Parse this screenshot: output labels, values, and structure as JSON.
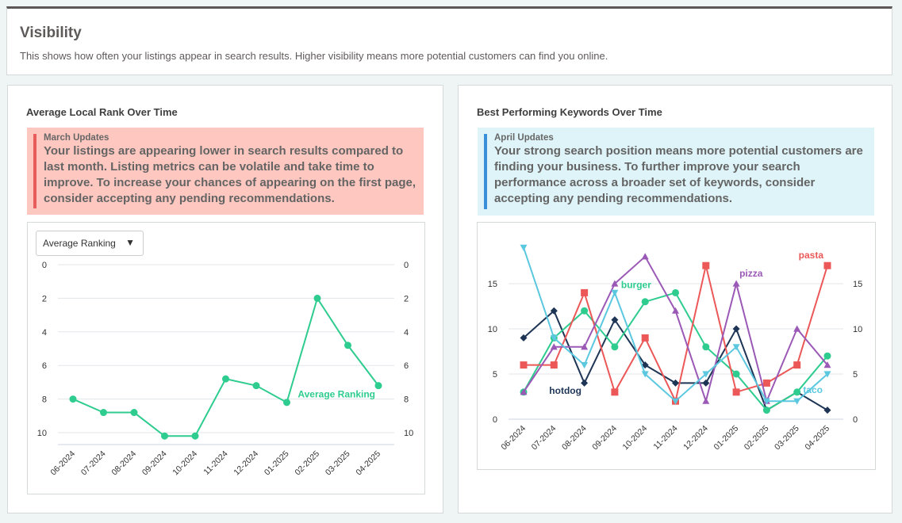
{
  "header": {
    "title": "Visibility",
    "description": "This shows how often your listings appear in search results. Higher visibility means more potential customers can find you online."
  },
  "left": {
    "title": "Average Local Rank Over Time",
    "alert": {
      "title": "March Updates",
      "body": "Your listings are appearing lower in search results compared to last month. Listing metrics can be volatile and take time to improve. To increase your chances of appearing on the first page, consider accepting any pending recommendations."
    },
    "dropdown": {
      "value": "Average Ranking",
      "icon": "caret-down-icon"
    }
  },
  "right": {
    "title": "Best Performing Keywords Over Time",
    "alert": {
      "title": "April Updates",
      "body": "Your strong search position means more potential customers are finding your business. To further improve your search performance across a broader set of keywords, consider accepting any pending recommendations."
    }
  },
  "chart_data": [
    {
      "type": "line",
      "categories": [
        "06-2024",
        "07-2024",
        "08-2024",
        "09-2024",
        "10-2024",
        "11-2024",
        "12-2024",
        "01-2025",
        "02-2025",
        "03-2025",
        "04-2025"
      ],
      "y_reversed": true,
      "ylim": [
        0,
        10.7
      ],
      "yticks": [
        0,
        2,
        4,
        6,
        8,
        10
      ],
      "dual_y_axis": true,
      "grid": true,
      "series": [
        {
          "name": "Average Ranking",
          "color": "#2ecc8f",
          "marker": "circle",
          "values": [
            8,
            8.8,
            8.8,
            10.2,
            10.2,
            6.8,
            7.2,
            8.2,
            2,
            4.8,
            7.2
          ]
        }
      ]
    },
    {
      "type": "line",
      "categories": [
        "06-2024",
        "07-2024",
        "08-2024",
        "09-2024",
        "10-2024",
        "11-2024",
        "12-2024",
        "01-2025",
        "02-2025",
        "03-2025",
        "04-2025"
      ],
      "ylim": [
        0,
        20
      ],
      "yticks": [
        0,
        5,
        10,
        15
      ],
      "dual_y_axis": true,
      "grid": true,
      "series": [
        {
          "name": "hotdog",
          "color": "#1e3556",
          "marker": "diamond",
          "values": [
            9,
            12,
            4,
            11,
            6,
            4,
            4,
            10,
            1,
            3,
            1
          ]
        },
        {
          "name": "burger",
          "color": "#2ecc8f",
          "marker": "circle",
          "values": [
            3,
            9,
            12,
            8,
            13,
            14,
            8,
            5,
            1,
            3,
            7
          ]
        },
        {
          "name": "pasta",
          "color": "#ec5858",
          "marker": "square",
          "values": [
            6,
            6,
            14,
            3,
            9,
            2,
            17,
            3,
            4,
            6,
            17
          ]
        },
        {
          "name": "pizza",
          "color": "#9b59b6",
          "marker": "triangle-up",
          "values": [
            3,
            8,
            8,
            15,
            18,
            12,
            2,
            15,
            2,
            10,
            6
          ]
        },
        {
          "name": "taco",
          "color": "#5bc8e0",
          "marker": "triangle-down",
          "values": [
            19,
            9,
            6,
            14,
            5,
            2,
            5,
            8,
            2,
            2,
            5
          ]
        }
      ]
    }
  ]
}
